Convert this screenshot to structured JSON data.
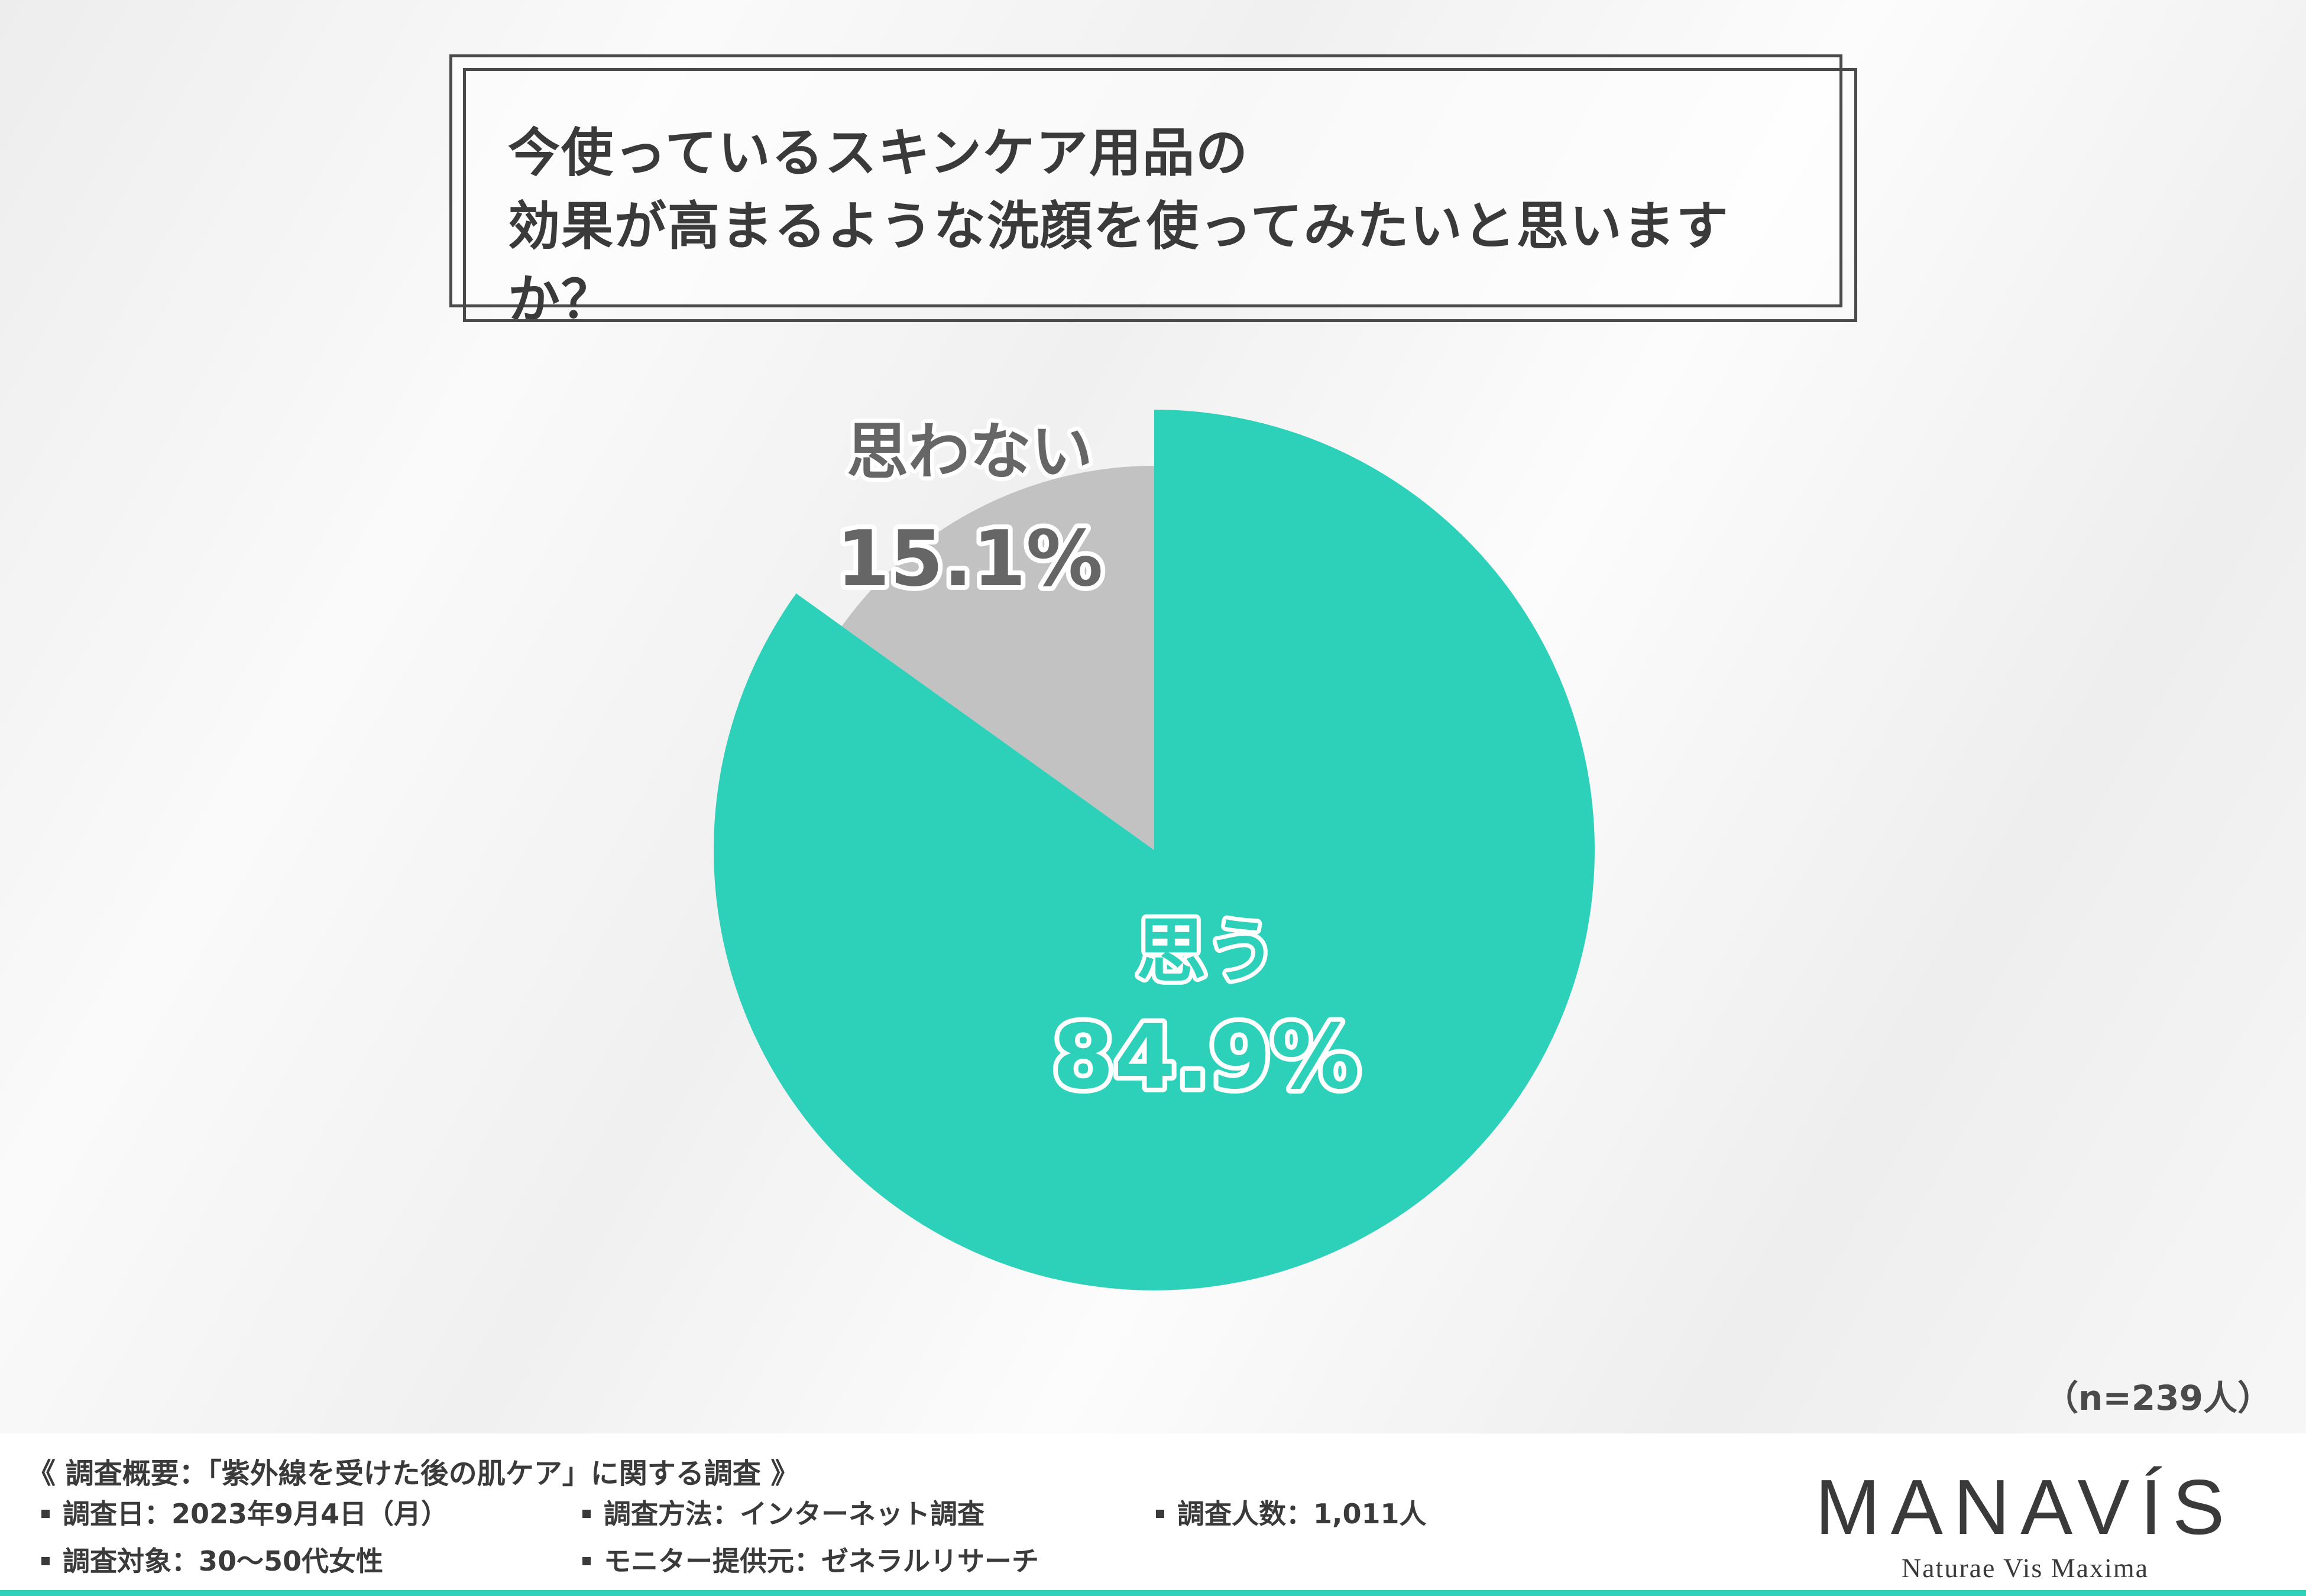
{
  "title": {
    "line1": "今使っているスキンケア用品の",
    "line2": "効果が高まるような洗顔を使ってみたいと思いますか？"
  },
  "chart_data": {
    "type": "pie",
    "title": "今使っているスキンケア用品の効果が高まるような洗顔を使ってみたいと思いますか？",
    "categories": [
      "思う",
      "思わない"
    ],
    "values": [
      84.9,
      15.1
    ],
    "value_labels": [
      "84.9%",
      "15.1%"
    ],
    "colors": [
      "#2dd1b9",
      "#c2c2c2"
    ],
    "label_colors": [
      "#2dd1b9",
      "#666666"
    ],
    "start": "12 o'clock",
    "direction": "clockwise",
    "exploded": "思わない"
  },
  "sample_note": "（n=239人）",
  "footer": {
    "survey_title": "《 調査概要：「紫外線を受けた後の肌ケア」に関する調査 》",
    "items": [
      "調査日：2023年9月4日（月）",
      "調査方法：インターネット調査",
      "調査人数：1,011人",
      "調査対象：30〜50代女性",
      "モニター提供元：ゼネラルリサーチ"
    ],
    "brand_name": "MANAVÍS",
    "brand_tagline": "Naturae Vis Maxima"
  },
  "colors": {
    "accent": "#2fd1b8",
    "text": "#3a3a3a"
  }
}
